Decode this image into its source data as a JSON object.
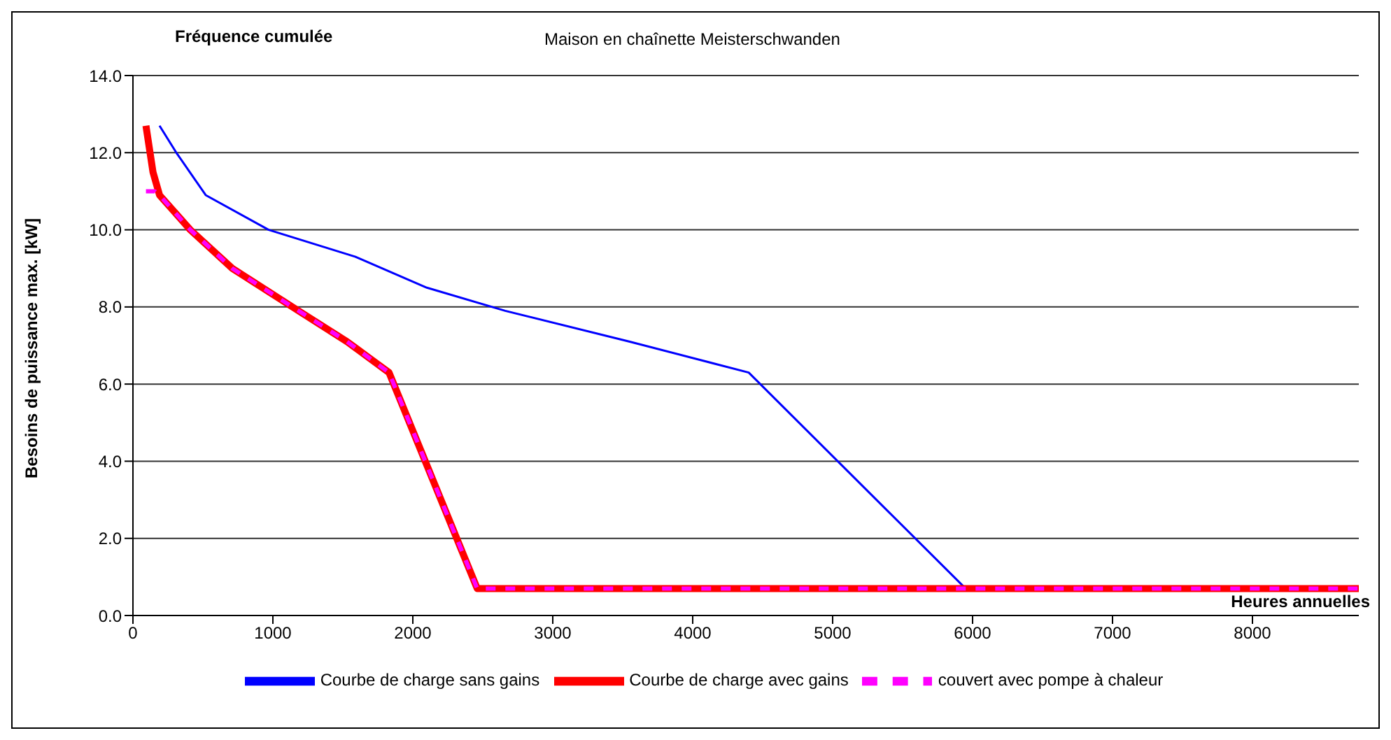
{
  "chart_data": {
    "type": "line",
    "title": "Maison en chaînette Meisterschwanden",
    "xlabel": "Heures annuelles",
    "ylabel": "Besoins de puissance max. [kW]",
    "annotations": [
      "Fréquence cumulée"
    ],
    "xlim": [
      0,
      8760
    ],
    "xticks": [
      0,
      1000,
      2000,
      3000,
      4000,
      5000,
      6000,
      7000,
      8000
    ],
    "ylim": [
      0,
      14
    ],
    "yticks": [
      {
        "value": 0,
        "label": "0.0"
      },
      {
        "value": 2,
        "label": "2.0"
      },
      {
        "value": 4,
        "label": "4.0"
      },
      {
        "value": 6,
        "label": "6.0"
      },
      {
        "value": 8,
        "label": "8.0"
      },
      {
        "value": 10,
        "label": "10.0"
      },
      {
        "value": 12,
        "label": "12.0"
      },
      {
        "value": 14,
        "label": "14.0"
      }
    ],
    "grid": "y",
    "legend": "bottom",
    "marker": "none",
    "series": [
      {
        "name": "Courbe de charge sans gains",
        "color": "#0000ff",
        "line_style": "solid",
        "x": [
          190,
          310,
          520,
          970,
          1590,
          2100,
          2660,
          3550,
          4400,
          5950
        ],
        "values": [
          12.7,
          12.0,
          10.9,
          10.0,
          9.3,
          8.5,
          7.9,
          7.1,
          6.3,
          0.7
        ]
      },
      {
        "name": "Courbe de charge avec gains",
        "color": "#ff0000",
        "line_style": "solid",
        "x": [
          93,
          143,
          190,
          410,
          710,
          1140,
          1530,
          1830,
          2460,
          8760
        ],
        "values": [
          12.7,
          11.5,
          10.9,
          10.0,
          9.0,
          8.0,
          7.1,
          6.3,
          0.7,
          0.7
        ]
      },
      {
        "name": "couvert avec pompe à chaleur",
        "color": "#ff00ff",
        "line_style": "dashed",
        "x": [
          93,
          155,
          190,
          410,
          710,
          1140,
          1530,
          1830,
          2460,
          8760
        ],
        "values": [
          11.0,
          11.0,
          10.9,
          10.0,
          9.0,
          8.0,
          7.1,
          6.3,
          0.7,
          0.7
        ]
      }
    ]
  }
}
